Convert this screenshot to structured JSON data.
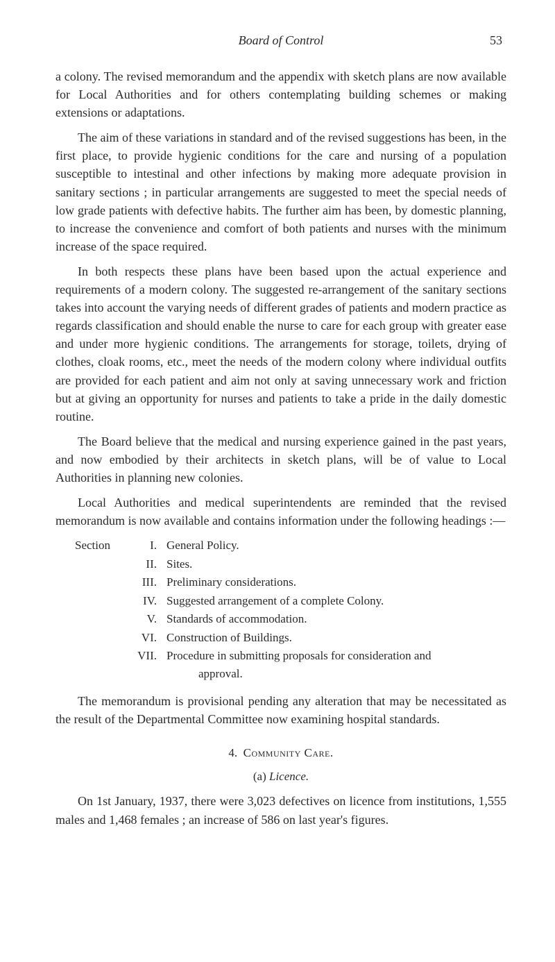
{
  "header": {
    "running_title": "Board of Control",
    "page_number": "53"
  },
  "paragraphs": {
    "p1": "a colony. The revised memorandum and the appendix with sketch plans are now available for Local Authorities and for others con­templating building schemes or making extensions or adaptations.",
    "p2": "The aim of these variations in standard and of the revised suggestions has been, in the first place, to provide hygienic conditions for the care and nursing of a population susceptible to intestinal and other infections by making more adequate provision in sanitary sections ; in particular arrangements are suggested to meet the special needs of low grade patients with defective habits. The further aim has been, by domestic planning, to increase the convenience and comfort of both patients and nurses with the minimum increase of the space required.",
    "p3": "In both respects these plans have been based upon the actual experience and requirements of a modern colony. The suggested re-arrangement of the sanitary sections takes into account the varying needs of different grades of patients and modern practice as regards classification and should enable the nurse to care for each group with greater ease and under more hygienic conditions. The arrangements for storage, toilets, drying of clothes, cloak rooms, etc., meet the needs of the modern colony where individual outfits are provided for each patient and aim not only at saving unnecessary work and friction but at giving an opportunity for nurses and patients to take a pride in the daily domestic routine.",
    "p4": "The Board believe that the medical and nursing experience gained in the past years, and now embodied by their architects in sketch plans, will be of value to Local Authorities in planning new colonies.",
    "p5": "Local Authorities and medical superintendents are reminded that the revised memorandum is now available and contains information under the following headings :—",
    "p6": "The memorandum is provisional pending any alteration that may be necessitated as the result of the Departmental Committee now examining hospital standards.",
    "p7": "On 1st January, 1937, there were 3,023 defectives on licence from institutions, 1,555 males and 1,468 females ; an increase of 586 on last year's figures."
  },
  "sections": {
    "prefix": "Section",
    "items": [
      {
        "numeral": "I.",
        "text": "General Policy."
      },
      {
        "numeral": "II.",
        "text": "Sites."
      },
      {
        "numeral": "III.",
        "text": "Preliminary considerations."
      },
      {
        "numeral": "IV.",
        "text": "Suggested arrangement of a complete Colony."
      },
      {
        "numeral": "V.",
        "text": "Standards of accommodation."
      },
      {
        "numeral": "VI.",
        "text": "Construction of Buildings."
      },
      {
        "numeral": "VII.",
        "text": "Procedure in submitting proposals for consideration and",
        "cont": "approval."
      }
    ]
  },
  "subheading": {
    "number": "4.",
    "title": "Community Care."
  },
  "subsub": {
    "label": "(a)",
    "title": "Licence."
  }
}
